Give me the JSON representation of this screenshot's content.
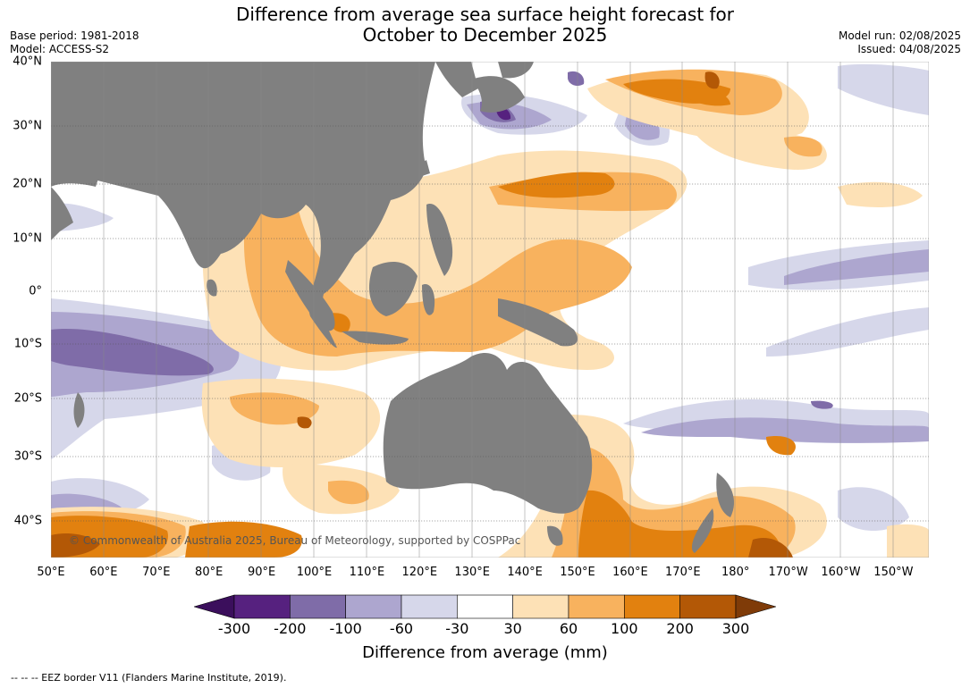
{
  "header": {
    "title_line1": "Difference from average sea surface height forecast for",
    "title_line2": "October to December 2025",
    "base_period": "Base period: 1981-2018",
    "model": "Model: ACCESS-S2",
    "model_run": "Model run: 02/08/2025",
    "issued": "Issued: 04/08/2025"
  },
  "map": {
    "lat_labels": [
      "40°N",
      "30°N",
      "20°N",
      "10°N",
      "0°",
      "10°S",
      "20°S",
      "30°S",
      "40°S"
    ],
    "lon_labels": [
      "50°E",
      "60°E",
      "70°E",
      "80°E",
      "90°E",
      "100°E",
      "110°E",
      "120°E",
      "130°E",
      "140°E",
      "150°E",
      "160°E",
      "170°E",
      "180°",
      "170°W",
      "160°W",
      "150°W"
    ],
    "copyright": "© Commonwealth of Australia 2025, Bureau of Meteorology, supported by COSPPac",
    "land_color": "#808080"
  },
  "colorbar": {
    "ticks": [
      "-300",
      "-200",
      "-100",
      "-60",
      "-30",
      "30",
      "60",
      "100",
      "200",
      "300"
    ],
    "colors": [
      "#3b0f5c",
      "#56217f",
      "#7f6ca8",
      "#ada6cf",
      "#d6d7ea",
      "#ffffff",
      "#fde1b6",
      "#f8b25e",
      "#e2810f",
      "#b35806",
      "#7f3b08"
    ],
    "title": "Difference from average (mm)"
  },
  "footnote": "--  --  -- EEZ border V11 (Flanders Marine Institute, 2019)."
}
